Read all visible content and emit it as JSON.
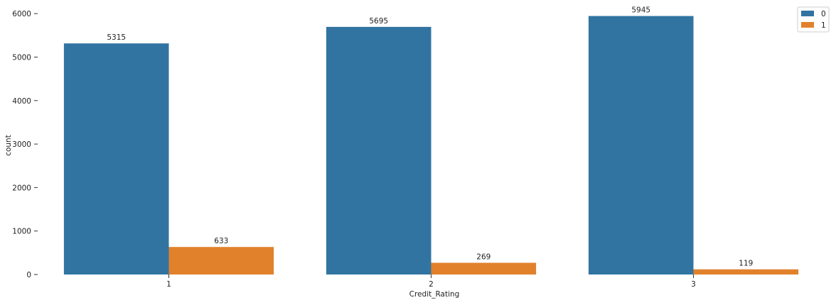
{
  "chart_data": {
    "type": "bar",
    "title": "",
    "xlabel": "Credit_Rating",
    "ylabel": "count",
    "categories": [
      "1",
      "2",
      "3"
    ],
    "ylim": [
      0,
      6150
    ],
    "yticks": [
      0,
      1000,
      2000,
      3000,
      4000,
      5000,
      6000
    ],
    "grid": false,
    "legend_position": "top-right",
    "series": [
      {
        "name": "0",
        "values": [
          5315,
          5695,
          5945
        ],
        "color": "#3274a1"
      },
      {
        "name": "1",
        "values": [
          633,
          269,
          119
        ],
        "color": "#e1812c"
      }
    ]
  }
}
